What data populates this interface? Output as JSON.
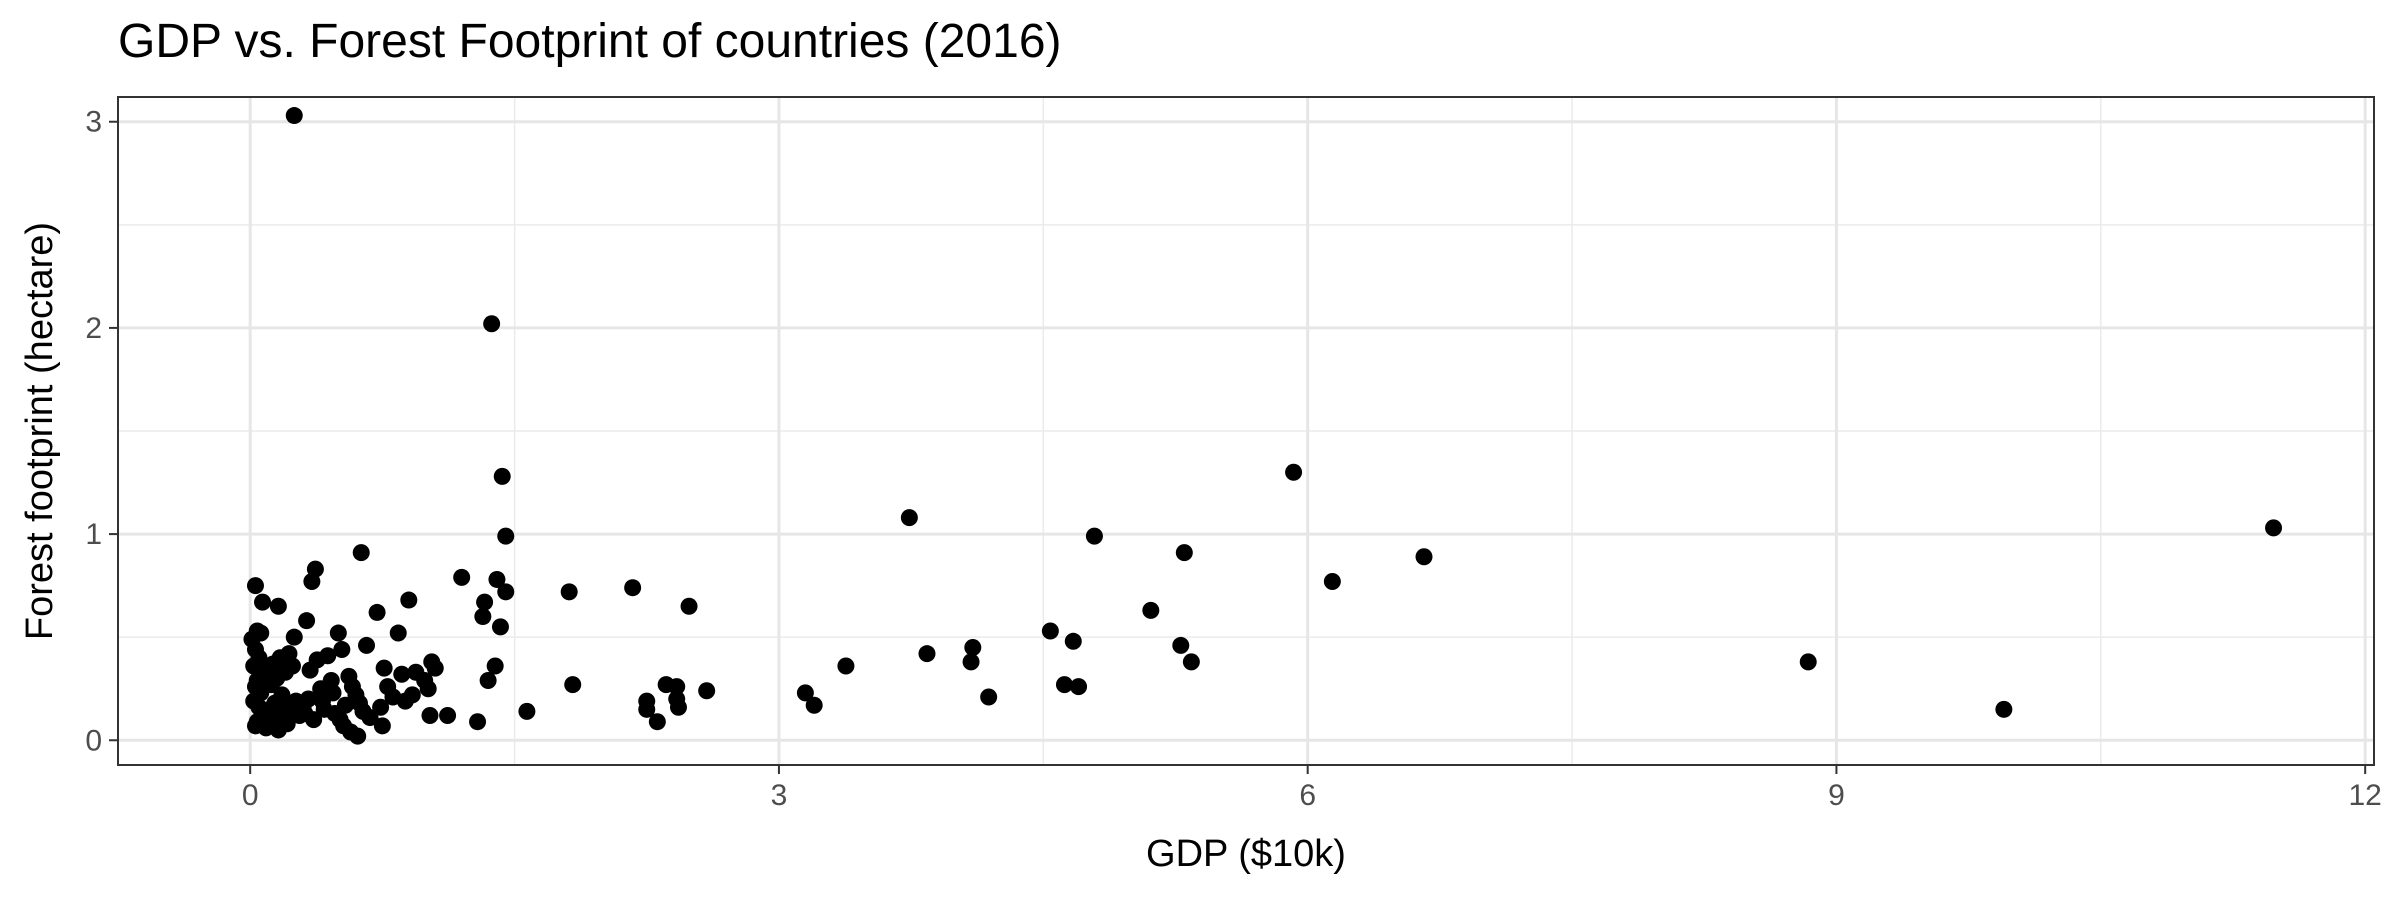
{
  "chart_data": {
    "type": "scatter",
    "title": "GDP vs. Forest Footprint of countries (2016)",
    "xlabel": "GDP ($10k)",
    "ylabel": "Forest footprint (hectare)",
    "xlim": [
      -0.75,
      12.05
    ],
    "ylim": [
      -0.12,
      3.12
    ],
    "xticks": [
      0,
      3,
      6,
      9,
      12
    ],
    "yticks": [
      0,
      1,
      2,
      3
    ],
    "grid": true,
    "legend": "none",
    "point_color": "#000000",
    "points": [
      [
        0.25,
        3.03
      ],
      [
        1.37,
        2.02
      ],
      [
        1.43,
        1.28
      ],
      [
        1.45,
        0.99
      ],
      [
        1.4,
        0.78
      ],
      [
        1.45,
        0.72
      ],
      [
        1.33,
        0.67
      ],
      [
        1.32,
        0.6
      ],
      [
        1.42,
        0.55
      ],
      [
        1.39,
        0.36
      ],
      [
        1.35,
        0.29
      ],
      [
        1.29,
        0.09
      ],
      [
        1.57,
        0.14
      ],
      [
        1.2,
        0.79
      ],
      [
        1.81,
        0.72
      ],
      [
        1.83,
        0.27
      ],
      [
        2.17,
        0.74
      ],
      [
        2.49,
        0.65
      ],
      [
        2.25,
        0.19
      ],
      [
        2.25,
        0.15
      ],
      [
        2.36,
        0.27
      ],
      [
        2.42,
        0.26
      ],
      [
        2.42,
        0.2
      ],
      [
        2.43,
        0.16
      ],
      [
        2.31,
        0.09
      ],
      [
        2.59,
        0.24
      ],
      [
        3.15,
        0.23
      ],
      [
        3.2,
        0.17
      ],
      [
        3.38,
        0.36
      ],
      [
        3.74,
        1.08
      ],
      [
        3.84,
        0.42
      ],
      [
        4.09,
        0.38
      ],
      [
        4.1,
        0.45
      ],
      [
        4.19,
        0.21
      ],
      [
        4.54,
        0.53
      ],
      [
        4.62,
        0.27
      ],
      [
        4.67,
        0.48
      ],
      [
        4.7,
        0.26
      ],
      [
        4.79,
        0.99
      ],
      [
        5.11,
        0.63
      ],
      [
        5.3,
        0.91
      ],
      [
        5.28,
        0.46
      ],
      [
        5.34,
        0.38
      ],
      [
        5.92,
        1.3
      ],
      [
        6.14,
        0.77
      ],
      [
        6.66,
        0.89
      ],
      [
        8.84,
        0.38
      ],
      [
        9.95,
        0.15
      ],
      [
        11.48,
        1.03
      ],
      [
        0.03,
        0.75
      ],
      [
        0.07,
        0.67
      ],
      [
        0.04,
        0.53
      ],
      [
        0.06,
        0.52
      ],
      [
        0.01,
        0.49
      ],
      [
        0.03,
        0.44
      ],
      [
        0.05,
        0.4
      ],
      [
        0.02,
        0.36
      ],
      [
        0.08,
        0.33
      ],
      [
        0.04,
        0.29
      ],
      [
        0.03,
        0.26
      ],
      [
        0.06,
        0.23
      ],
      [
        0.02,
        0.19
      ],
      [
        0.05,
        0.16
      ],
      [
        0.07,
        0.13
      ],
      [
        0.04,
        0.09
      ],
      [
        0.03,
        0.07
      ],
      [
        0.09,
        0.06
      ],
      [
        0.12,
        0.1
      ],
      [
        0.16,
        0.05
      ],
      [
        0.11,
        0.15
      ],
      [
        0.14,
        0.18
      ],
      [
        0.18,
        0.22
      ],
      [
        0.12,
        0.27
      ],
      [
        0.15,
        0.3
      ],
      [
        0.2,
        0.33
      ],
      [
        0.13,
        0.37
      ],
      [
        0.17,
        0.4
      ],
      [
        0.22,
        0.42
      ],
      [
        0.16,
        0.65
      ],
      [
        0.24,
        0.36
      ],
      [
        0.19,
        0.12
      ],
      [
        0.23,
        0.16
      ],
      [
        0.26,
        0.19
      ],
      [
        0.21,
        0.08
      ],
      [
        0.28,
        0.12
      ],
      [
        0.25,
        0.5
      ],
      [
        0.3,
        0.16
      ],
      [
        0.33,
        0.2
      ],
      [
        0.31,
        0.13
      ],
      [
        0.35,
        0.77
      ],
      [
        0.37,
        0.83
      ],
      [
        0.32,
        0.58
      ],
      [
        0.38,
        0.39
      ],
      [
        0.34,
        0.34
      ],
      [
        0.4,
        0.25
      ],
      [
        0.36,
        0.1
      ],
      [
        0.42,
        0.15
      ],
      [
        0.44,
        0.41
      ],
      [
        0.46,
        0.29
      ],
      [
        0.41,
        0.19
      ],
      [
        0.48,
        0.13
      ],
      [
        0.5,
        0.52
      ],
      [
        0.52,
        0.44
      ],
      [
        0.47,
        0.23
      ],
      [
        0.54,
        0.17
      ],
      [
        0.51,
        0.1
      ],
      [
        0.56,
        0.31
      ],
      [
        0.58,
        0.26
      ],
      [
        0.53,
        0.07
      ],
      [
        0.6,
        0.22
      ],
      [
        0.62,
        0.18
      ],
      [
        0.57,
        0.04
      ],
      [
        0.64,
        0.14
      ],
      [
        0.61,
        0.02
      ],
      [
        0.63,
        0.91
      ],
      [
        0.66,
        0.46
      ],
      [
        0.68,
        0.11
      ],
      [
        0.72,
        0.62
      ],
      [
        0.74,
        0.16
      ],
      [
        0.76,
        0.35
      ],
      [
        0.78,
        0.26
      ],
      [
        0.75,
        0.07
      ],
      [
        0.81,
        0.21
      ],
      [
        0.84,
        0.52
      ],
      [
        0.86,
        0.32
      ],
      [
        0.88,
        0.19
      ],
      [
        0.9,
        0.68
      ],
      [
        0.92,
        0.22
      ],
      [
        0.94,
        0.33
      ],
      [
        0.99,
        0.29
      ],
      [
        1.03,
        0.38
      ],
      [
        1.05,
        0.35
      ],
      [
        1.01,
        0.25
      ],
      [
        1.02,
        0.12
      ],
      [
        1.12,
        0.12
      ]
    ]
  }
}
